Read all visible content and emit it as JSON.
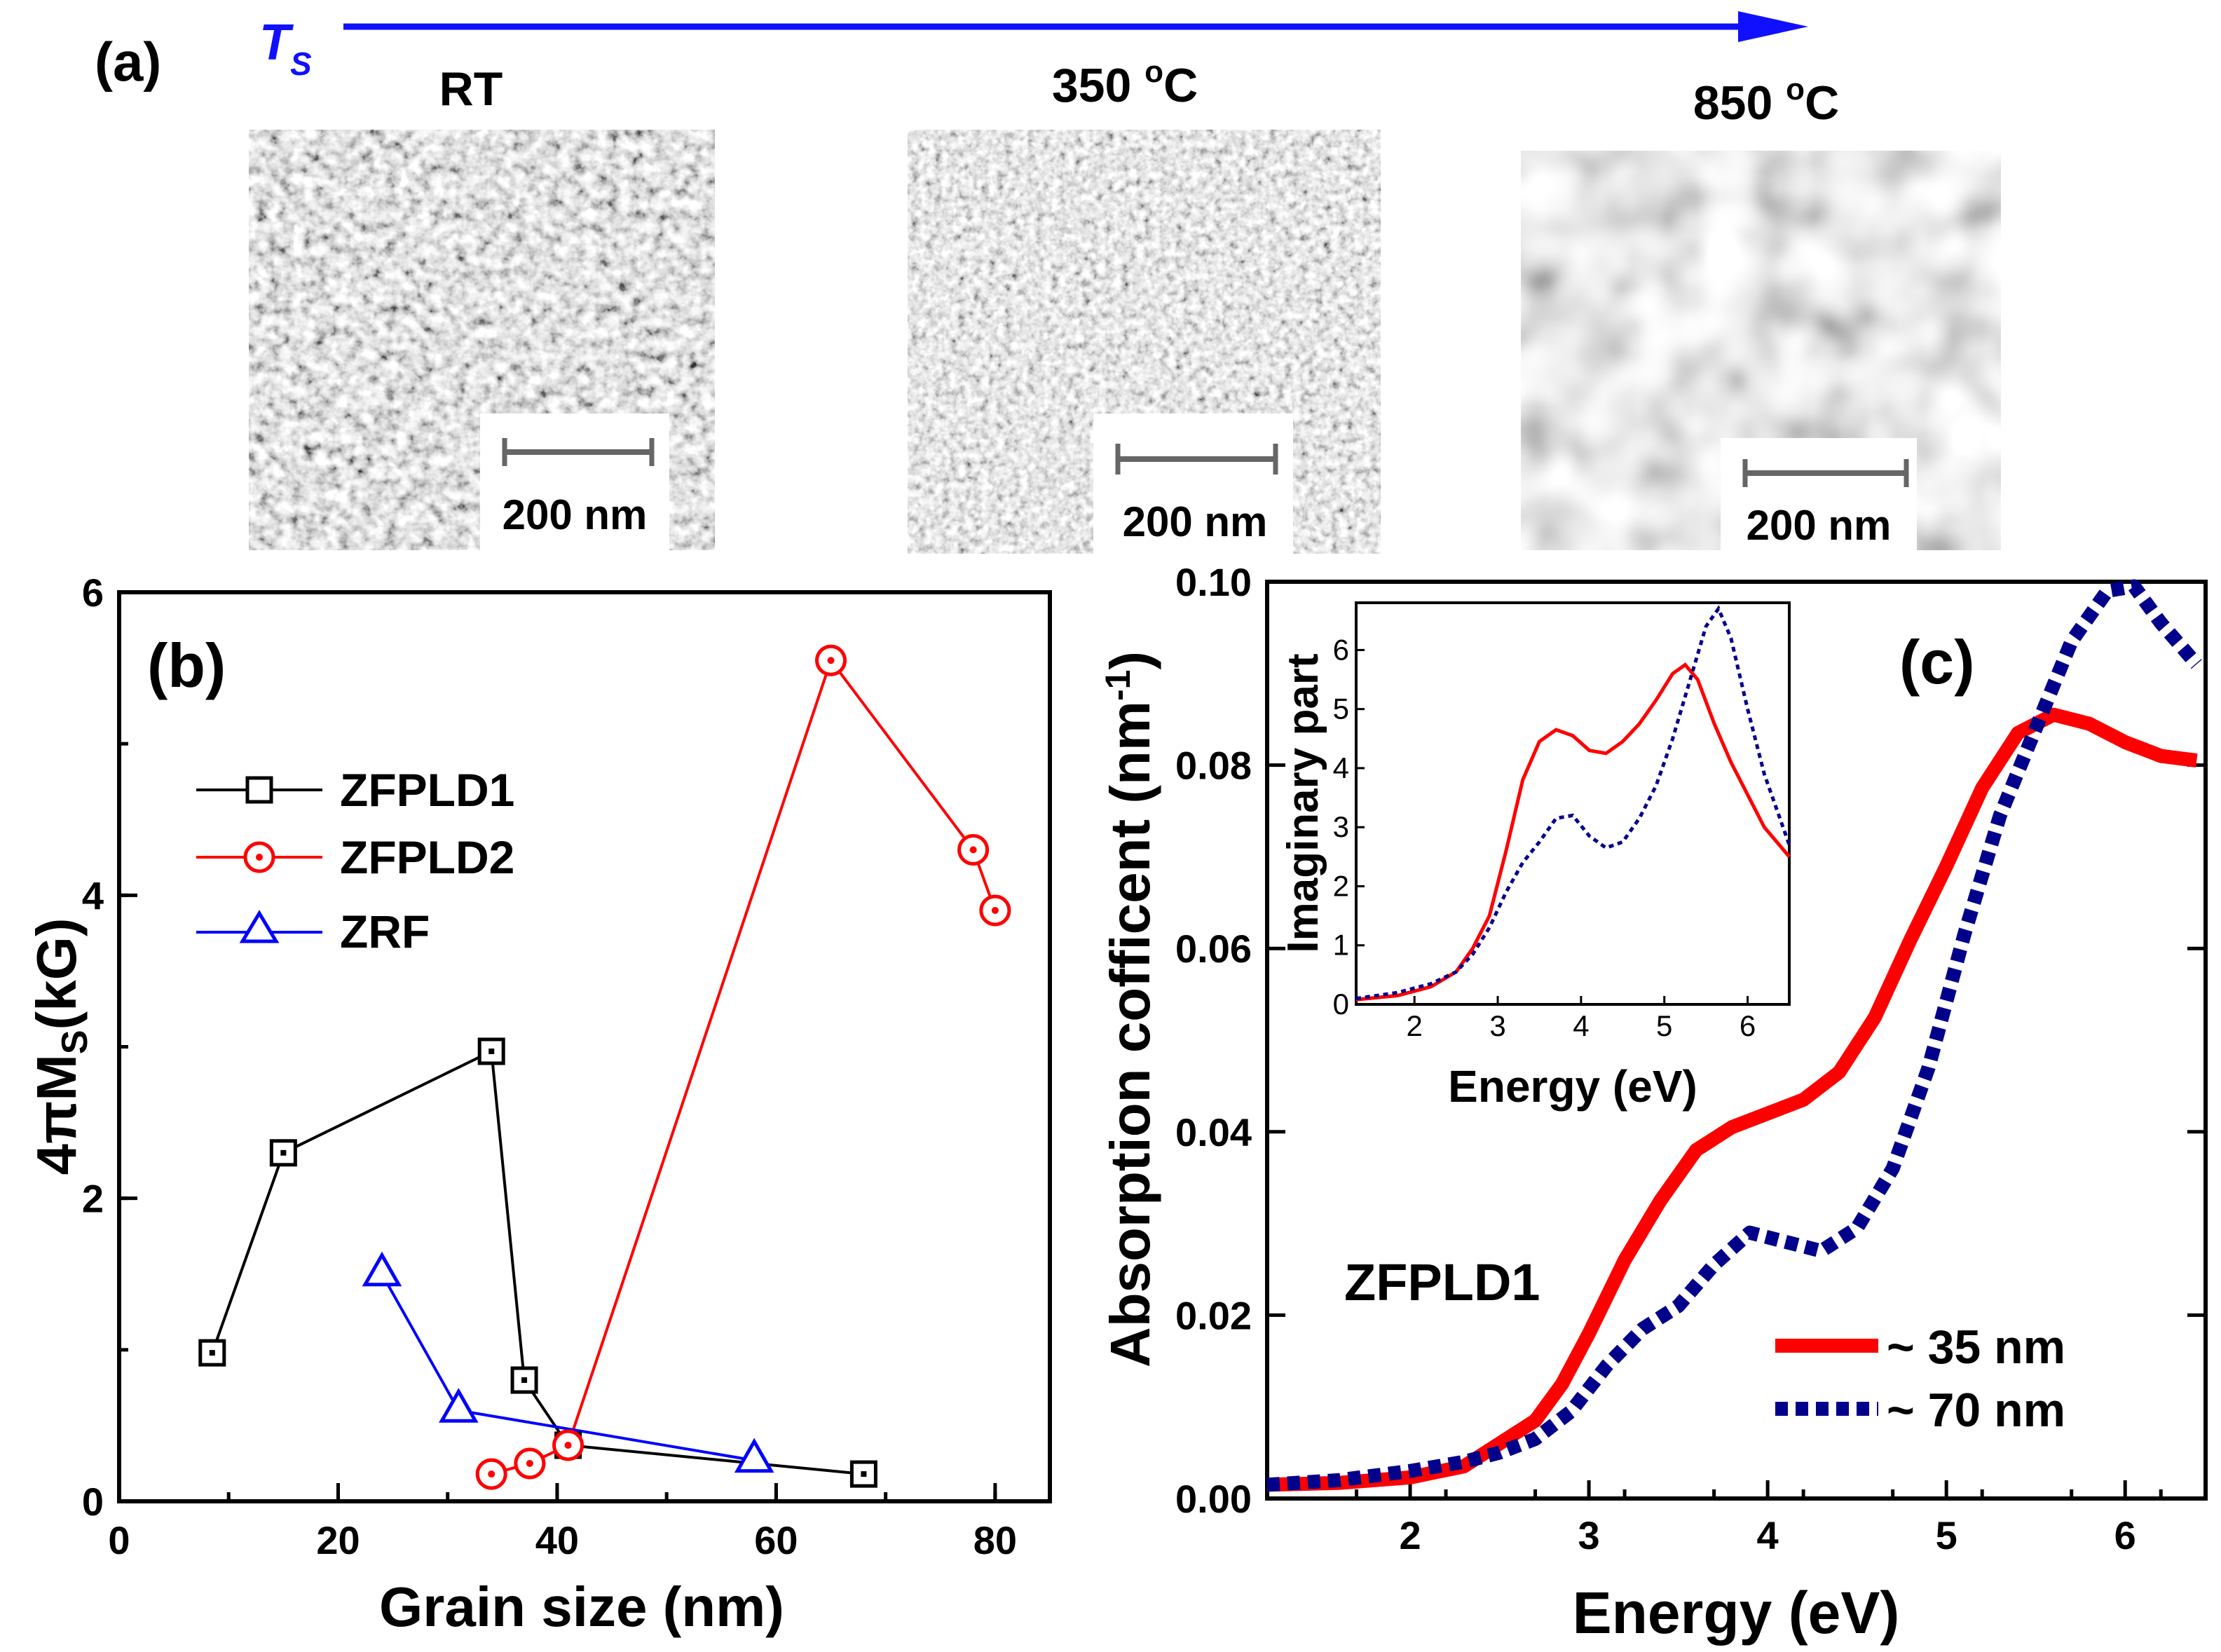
{
  "panel_a": {
    "label": "(a)",
    "axis_symbol": "T",
    "axis_subscript": "S",
    "samples": [
      {
        "temperature": "RT",
        "scale_bar": "200 nm"
      },
      {
        "temperature": "350 °C",
        "scale_bar": "200 nm"
      },
      {
        "temperature": "850 °C",
        "scale_bar": "200 nm"
      }
    ]
  },
  "chart_data": [
    {
      "type": "line",
      "label": "(b)",
      "xlabel": "Grain size (nm)",
      "ylabel": "4πMS(kG)",
      "xlim": [
        0,
        85
      ],
      "ylim": [
        0,
        6
      ],
      "xticks": [
        "0",
        "20",
        "40",
        "60",
        "80"
      ],
      "yticks": [
        "0",
        "2",
        "4",
        "6"
      ],
      "series": [
        {
          "name": "ZFPLD1",
          "color": "#000000",
          "marker": "square",
          "x": [
            8.5,
            15,
            34,
            37,
            41,
            68
          ],
          "y": [
            0.98,
            2.3,
            2.97,
            0.8,
            0.37,
            0.18
          ]
        },
        {
          "name": "ZFPLD2",
          "color": "#ff0000",
          "marker": "circle",
          "x": [
            34,
            37.5,
            41,
            65,
            78,
            80
          ],
          "y": [
            0.18,
            0.25,
            0.37,
            5.55,
            4.3,
            3.9
          ]
        },
        {
          "name": "ZRF",
          "color": "#0000ff",
          "marker": "triangle",
          "x": [
            24,
            31,
            58
          ],
          "y": [
            1.5,
            0.6,
            0.27
          ]
        }
      ]
    },
    {
      "type": "line",
      "label": "(c)",
      "annotation": "ZFPLD1",
      "xlabel": "Energy (eV)",
      "ylabel": "Absorption cofficent (nm-1)",
      "xlim": [
        1.2,
        6.45
      ],
      "ylim": [
        0,
        0.1
      ],
      "xticks": [
        "2",
        "3",
        "4",
        "5",
        "6"
      ],
      "yticks": [
        "0.00",
        "0.02",
        "0.04",
        "0.06",
        "0.08",
        "0.10"
      ],
      "series": [
        {
          "name": "~ 35 nm",
          "color": "#ff0000",
          "style": "solid",
          "x": [
            1.2,
            1.6,
            2.0,
            2.3,
            2.5,
            2.7,
            2.85,
            3.0,
            3.2,
            3.4,
            3.6,
            3.8,
            4.0,
            4.2,
            4.4,
            4.6,
            4.8,
            5.0,
            5.2,
            5.4,
            5.6,
            5.8,
            6.0,
            6.2,
            6.4
          ],
          "y": [
            0.0015,
            0.0017,
            0.0023,
            0.0035,
            0.006,
            0.0085,
            0.0125,
            0.018,
            0.026,
            0.0325,
            0.038,
            0.0405,
            0.042,
            0.0435,
            0.0465,
            0.0525,
            0.061,
            0.069,
            0.0775,
            0.0835,
            0.0855,
            0.0845,
            0.0825,
            0.081,
            0.0805
          ]
        },
        {
          "name": "~ 70 nm",
          "color": "#00008b",
          "style": "dotted",
          "x": [
            1.2,
            1.6,
            2.0,
            2.3,
            2.5,
            2.7,
            2.9,
            3.1,
            3.3,
            3.5,
            3.7,
            3.9,
            4.1,
            4.3,
            4.5,
            4.7,
            4.9,
            5.1,
            5.3,
            5.5,
            5.7,
            5.9,
            6.05,
            6.2,
            6.4
          ],
          "y": [
            0.0015,
            0.002,
            0.003,
            0.004,
            0.005,
            0.0065,
            0.0095,
            0.0145,
            0.0185,
            0.021,
            0.0255,
            0.029,
            0.028,
            0.027,
            0.0295,
            0.036,
            0.047,
            0.0615,
            0.0745,
            0.084,
            0.0935,
            0.099,
            0.0995,
            0.0955,
            0.091
          ]
        }
      ],
      "inset": {
        "type": "line",
        "xlabel": "Energy (eV)",
        "ylabel": "Imaginary part",
        "xlim": [
          1.3,
          6.5
        ],
        "ylim": [
          0,
          6.8
        ],
        "xticks": [
          "2",
          "3",
          "4",
          "5",
          "6"
        ],
        "yticks": [
          "0",
          "1",
          "2",
          "3",
          "4",
          "5",
          "6"
        ],
        "series": [
          {
            "name": "~ 35 nm",
            "color": "#ff0000",
            "style": "solid",
            "x": [
              1.3,
              1.8,
              2.2,
              2.5,
              2.7,
              2.9,
              3.1,
              3.3,
              3.5,
              3.7,
              3.9,
              4.1,
              4.3,
              4.5,
              4.7,
              4.9,
              5.1,
              5.25,
              5.4,
              5.6,
              5.8,
              6.0,
              6.2,
              6.5
            ],
            "y": [
              0.08,
              0.15,
              0.3,
              0.55,
              0.95,
              1.5,
              2.6,
              3.8,
              4.45,
              4.65,
              4.55,
              4.3,
              4.25,
              4.45,
              4.75,
              5.15,
              5.6,
              5.75,
              5.5,
              4.75,
              4.1,
              3.55,
              3.0,
              2.5
            ]
          },
          {
            "name": "~ 70 nm",
            "color": "#00008b",
            "style": "dotted",
            "x": [
              1.3,
              1.8,
              2.2,
              2.5,
              2.7,
              2.9,
              3.1,
              3.3,
              3.5,
              3.7,
              3.9,
              4.1,
              4.3,
              4.5,
              4.7,
              4.9,
              5.1,
              5.3,
              5.5,
              5.65,
              5.8,
              6.0,
              6.2,
              6.5
            ],
            "y": [
              0.1,
              0.2,
              0.35,
              0.55,
              0.85,
              1.3,
              1.9,
              2.4,
              2.75,
              3.15,
              3.2,
              2.85,
              2.65,
              2.75,
              3.15,
              3.7,
              4.5,
              5.45,
              6.4,
              6.7,
              6.2,
              5.0,
              3.9,
              2.7
            ]
          }
        ]
      }
    }
  ]
}
